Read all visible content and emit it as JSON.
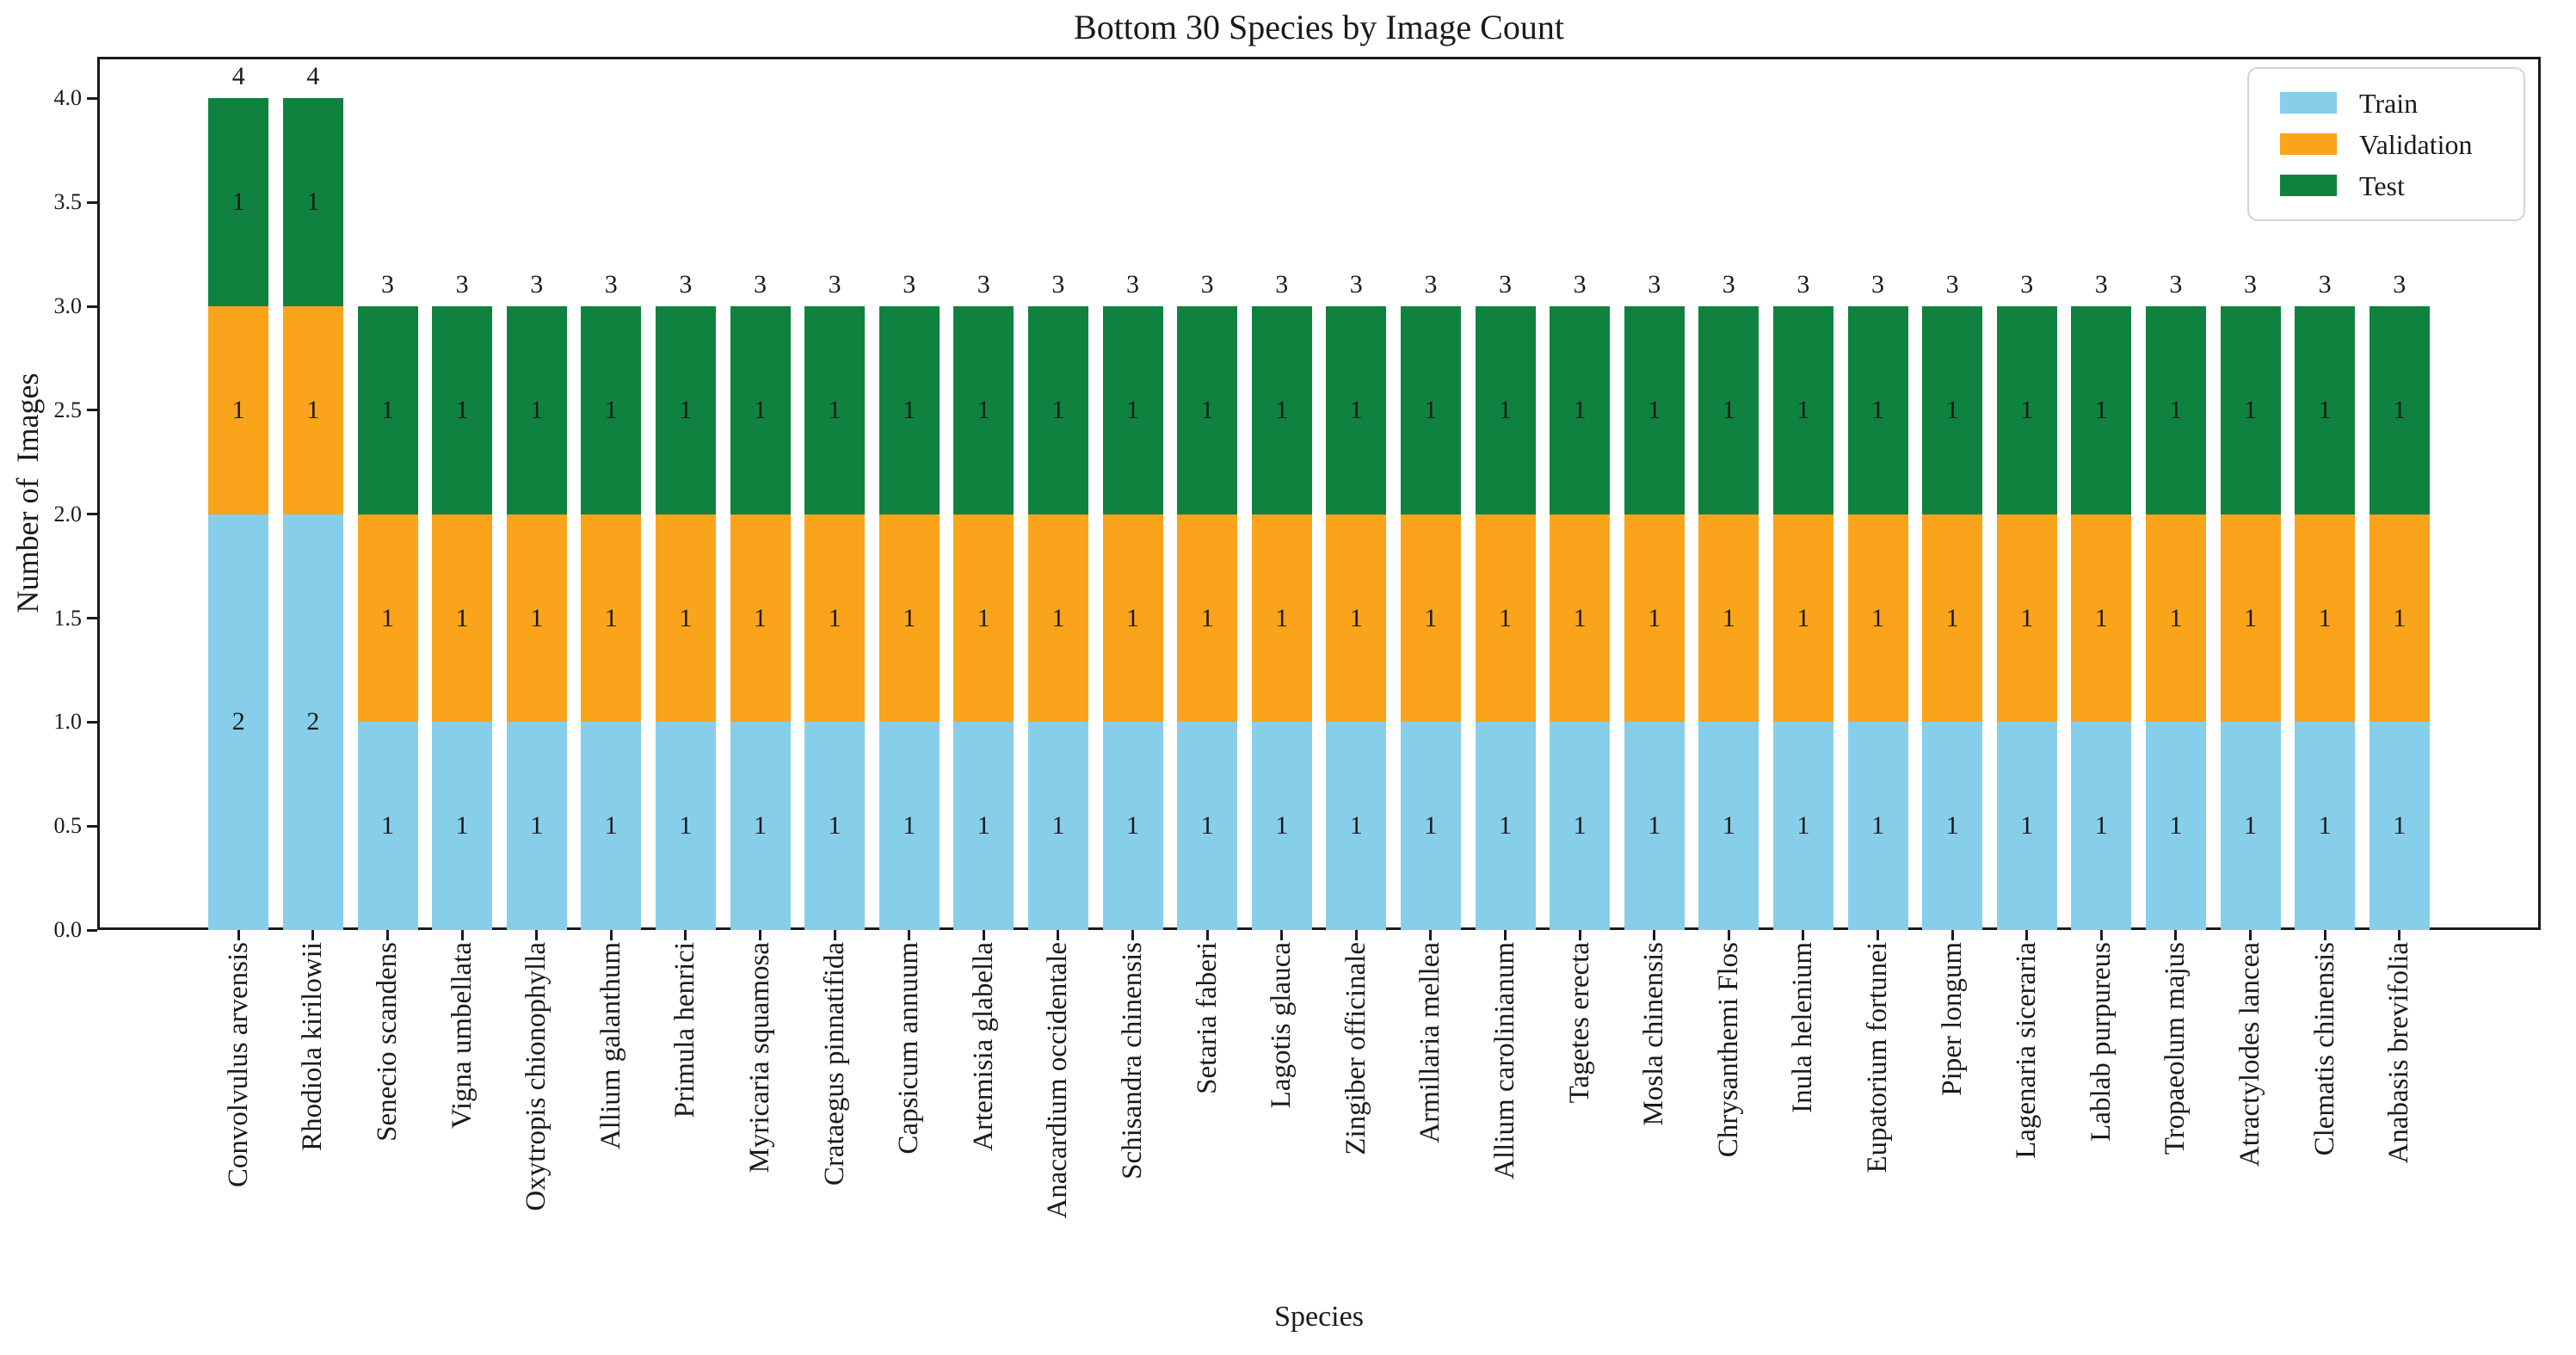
{
  "chart_data": {
    "type": "bar",
    "stacked": true,
    "title": "Bottom 30 Species by Image Count",
    "xlabel": "Species",
    "ylabel": "Number of  Images",
    "grid": false,
    "legend_position": "upper right",
    "ylim": [
      0,
      4.2
    ],
    "ytick_labels": [
      "0.0",
      "0.5",
      "1.0",
      "1.5",
      "2.0",
      "2.5",
      "3.0",
      "3.5",
      "4.0"
    ],
    "categories": [
      "Convolvulus arvensis",
      "Rhodiola kirilowii",
      "Senecio scandens",
      "Vigna umbellata",
      "Oxytropis chionophylla",
      "Allium galanthum",
      "Primula henrici",
      "Myricaria squamosa",
      "Crataegus pinnatifida",
      "Capsicum annuum",
      "Artemisia glabella",
      "Anacardium occidentale",
      "Schisandra chinensis",
      "Setaria faberi",
      "Lagotis glauca",
      "Zingiber officinale",
      "Armillaria mellea",
      "Allium carolinianum",
      "Tagetes erecta",
      "Mosla chinensis",
      "Chrysanthemi Flos",
      "Inula helenium",
      "Eupatorium fortunei",
      "Piper longum",
      "Lagenaria siceraria",
      "Lablab purpureus",
      "Tropaeolum majus",
      "Atractylodes lancea",
      "Clematis chinensis",
      "Anabasis brevifolia"
    ],
    "series": [
      {
        "name": "Train",
        "color": "#87CEEB",
        "values": [
          2,
          2,
          1,
          1,
          1,
          1,
          1,
          1,
          1,
          1,
          1,
          1,
          1,
          1,
          1,
          1,
          1,
          1,
          1,
          1,
          1,
          1,
          1,
          1,
          1,
          1,
          1,
          1,
          1,
          1
        ]
      },
      {
        "name": "Validation",
        "color": "#F9A41B",
        "values": [
          1,
          1,
          1,
          1,
          1,
          1,
          1,
          1,
          1,
          1,
          1,
          1,
          1,
          1,
          1,
          1,
          1,
          1,
          1,
          1,
          1,
          1,
          1,
          1,
          1,
          1,
          1,
          1,
          1,
          1
        ]
      },
      {
        "name": "Test",
        "color": "#108240",
        "values": [
          1,
          1,
          1,
          1,
          1,
          1,
          1,
          1,
          1,
          1,
          1,
          1,
          1,
          1,
          1,
          1,
          1,
          1,
          1,
          1,
          1,
          1,
          1,
          1,
          1,
          1,
          1,
          1,
          1,
          1
        ]
      }
    ],
    "totals": [
      4,
      4,
      3,
      3,
      3,
      3,
      3,
      3,
      3,
      3,
      3,
      3,
      3,
      3,
      3,
      3,
      3,
      3,
      3,
      3,
      3,
      3,
      3,
      3,
      3,
      3,
      3,
      3,
      3,
      3
    ]
  }
}
